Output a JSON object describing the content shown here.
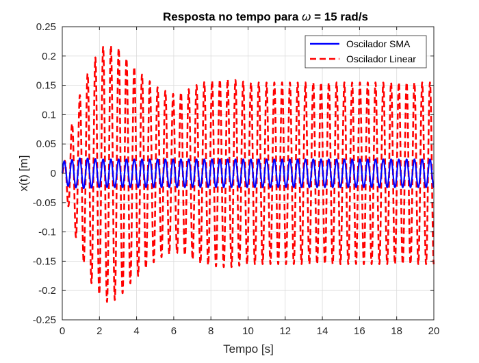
{
  "chart_data": {
    "type": "line",
    "title_prefix": "Resposta no tempo para ",
    "title_symbol": "ω",
    "title_suffix": " = 15 rad/s",
    "xlabel": "Tempo [s]",
    "ylabel": "x(t) [m]",
    "xlim": [
      0,
      20
    ],
    "ylim": [
      -0.25,
      0.25
    ],
    "xticks": [
      0,
      2,
      4,
      6,
      8,
      10,
      12,
      14,
      16,
      18,
      20
    ],
    "yticks": [
      0.25,
      0.2,
      0.15,
      0.1,
      0.05,
      0,
      -0.05,
      -0.1,
      -0.15,
      -0.2,
      -0.25
    ],
    "grid": true,
    "legend_position": "top-right",
    "excitation_frequency_rad_s": 15,
    "series": [
      {
        "name": "Oscilador SMA",
        "color": "#0000FF",
        "style": "solid",
        "t": [
          0,
          1,
          2,
          4,
          6,
          8,
          10,
          12,
          14,
          16,
          18,
          20
        ],
        "amplitude": [
          0.02,
          0.026,
          0.024,
          0.024,
          0.024,
          0.024,
          0.024,
          0.024,
          0.024,
          0.024,
          0.024,
          0.024
        ]
      },
      {
        "name": "Oscilador Linear",
        "color": "#FF0000",
        "style": "dashed",
        "t": [
          0,
          0.4,
          1.0,
          1.6,
          2.3,
          3.0,
          3.6,
          4.4,
          5.2,
          6.0,
          6.6,
          7.5,
          8.5,
          9.2,
          10,
          12,
          14,
          16,
          18,
          20
        ],
        "amplitude": [
          0.0,
          0.07,
          0.14,
          0.19,
          0.22,
          0.215,
          0.19,
          0.165,
          0.145,
          0.135,
          0.14,
          0.155,
          0.16,
          0.16,
          0.155,
          0.155,
          0.155,
          0.155,
          0.155,
          0.155
        ]
      }
    ]
  }
}
